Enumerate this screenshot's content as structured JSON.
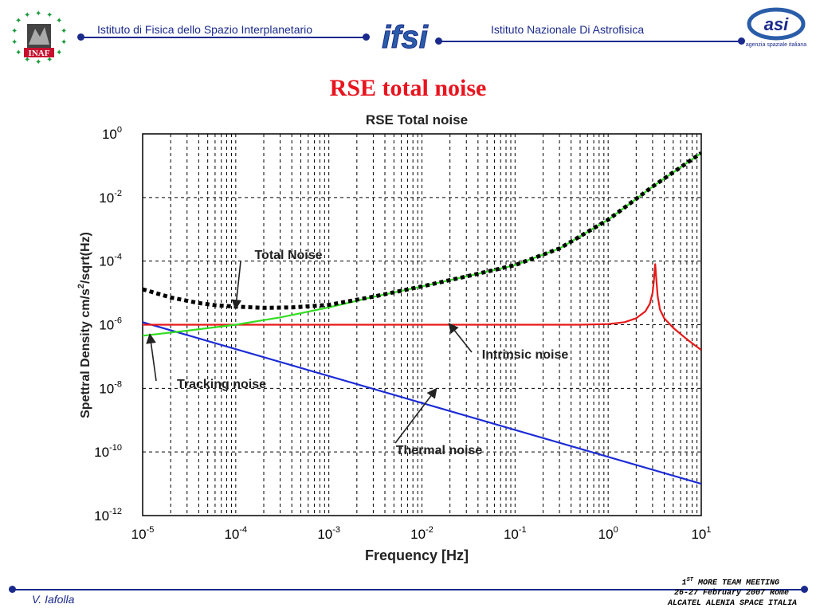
{
  "header": {
    "left_institute": "Istituto di Fisica dello Spazio Interplanetario",
    "right_institute": "Istituto Nazionale Di Astrofisica",
    "center_logo_text": "ifsi",
    "left_logo_text": "INAF",
    "right_logo_text": "asi",
    "right_logo_subtext": "agenzia spaziale italiana",
    "line_color": "#1a2a8c"
  },
  "slide": {
    "title": "RSE total noise",
    "title_color": "#e8141e"
  },
  "footer": {
    "author": "V. Iafolla",
    "meeting_prefix": "1",
    "meeting_sup": "ST",
    "meeting_suffix": " MORE TEAM MEETING",
    "date_place": "26-27 February 2007 Rome",
    "company": "ALCATEL ALENIA SPACE ITALIA"
  },
  "chart_data": {
    "type": "line",
    "title": "RSE Total noise",
    "xlabel": "Frequency [Hz]",
    "ylabel_parts": [
      "Spettral Density cm/s",
      "2",
      "/sqrt(Hz)"
    ],
    "x_scale": "log",
    "y_scale": "log",
    "xlim": [
      1e-05,
      10
    ],
    "ylim": [
      1e-12,
      1
    ],
    "grid": true,
    "x_ticks": [
      {
        "base": "10",
        "exp": "-5",
        "value": 1e-05
      },
      {
        "base": "10",
        "exp": "-4",
        "value": 0.0001
      },
      {
        "base": "10",
        "exp": "-3",
        "value": 0.001
      },
      {
        "base": "10",
        "exp": "-2",
        "value": 0.01
      },
      {
        "base": "10",
        "exp": "-1",
        "value": 0.1
      },
      {
        "base": "10",
        "exp": "0",
        "value": 1
      },
      {
        "base": "10",
        "exp": "1",
        "value": 10
      }
    ],
    "y_ticks": [
      {
        "base": "10",
        "exp": "0",
        "value": 1
      },
      {
        "base": "10",
        "exp": "-2",
        "value": 0.01
      },
      {
        "base": "10",
        "exp": "-4",
        "value": 0.0001
      },
      {
        "base": "10",
        "exp": "-6",
        "value": 1e-06
      },
      {
        "base": "10",
        "exp": "-8",
        "value": 1e-08
      },
      {
        "base": "10",
        "exp": "-10",
        "value": 1e-10
      },
      {
        "base": "10",
        "exp": "-12",
        "value": 1e-12
      }
    ],
    "series": [
      {
        "color": "#1b2bd6",
        "style": "solid",
        "x": [
          1e-05,
          10
        ],
        "y": [
          1.2e-06,
          1e-11
        ]
      },
      {
        "color": "#e81818",
        "style": "solid",
        "x": [
          1e-05,
          0.01,
          0.5,
          1,
          1.5,
          2,
          2.5,
          2.8,
          3.0,
          3.1,
          3.2,
          3.3,
          3.4,
          3.6,
          4,
          5,
          7,
          10
        ],
        "y": [
          1e-06,
          1e-06,
          1e-06,
          1.05e-06,
          1.2e-06,
          1.6e-06,
          2.6e-06,
          4.5e-06,
          1e-05,
          2.5e-05,
          8e-05,
          2.5e-05,
          8e-06,
          3e-06,
          1.6e-06,
          8e-07,
          3.5e-07,
          1.6e-07
        ]
      },
      {
        "color": "#33dd22",
        "style": "solid",
        "x": [
          1e-05,
          3e-05,
          0.0001,
          0.0003,
          0.001,
          0.003,
          0.01,
          0.03,
          0.1,
          0.3,
          1,
          3,
          10
        ],
        "y": [
          4.5e-07,
          6.5e-07,
          1e-06,
          1.7e-06,
          3.5e-06,
          7.5e-06,
          1.6e-05,
          3.3e-05,
          7.5e-05,
          0.00025,
          0.002,
          0.022,
          0.25
        ]
      },
      {
        "color": "#000000",
        "style": "dotted",
        "x": [
          1e-05,
          2e-05,
          4e-05,
          6e-05,
          0.0001,
          0.0002,
          0.0004,
          0.001,
          0.003,
          0.01,
          0.03,
          0.1,
          0.3,
          1,
          3,
          10
        ],
        "y": [
          1.3e-05,
          7.2e-06,
          4.8e-06,
          4.1e-06,
          3.7e-06,
          3.4e-06,
          3.5e-06,
          4.2e-06,
          7.6e-06,
          1.6e-05,
          3.3e-05,
          7.5e-05,
          0.00025,
          0.002,
          0.022,
          0.25
        ]
      }
    ],
    "annotations": [
      {
        "text": "Total Noise",
        "x": 0.0001,
        "y": 3.5e-06
      },
      {
        "text": "Intrinsic noise",
        "x": 0.02,
        "y": 1e-06
      },
      {
        "text": "Tracking noise",
        "x": 1.2e-05,
        "y": 4.5e-07
      },
      {
        "text": "Thermal noise",
        "x": 0.014,
        "y": 9e-09
      }
    ]
  }
}
